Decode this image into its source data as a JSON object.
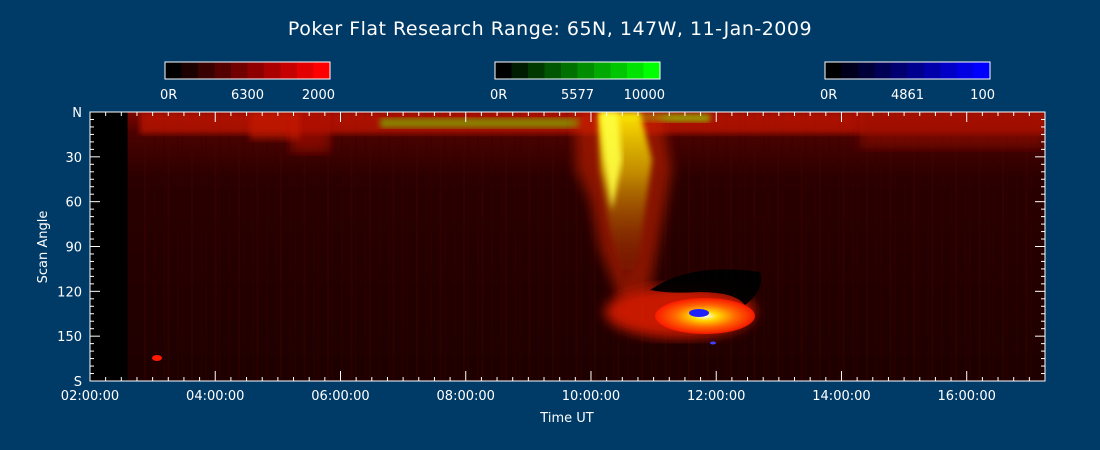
{
  "title": "Poker Flat Research Range: 65N, 147W, 11-Jan-2009",
  "colors": {
    "background": "#003a66",
    "red": "#ff0000",
    "green": "#00ff00",
    "blue": "#0000ff"
  },
  "chart_data": {
    "type": "heatmap",
    "title": "Poker Flat Research Range: 65N, 147W, 11-Jan-2009",
    "xlabel": "Time UT",
    "ylabel": "Scan Angle",
    "x_ticks": [
      "02:00:00",
      "04:00:00",
      "06:00:00",
      "08:00:00",
      "10:00:00",
      "12:00:00",
      "14:00:00",
      "16:00:00"
    ],
    "x_tick_hours": [
      2,
      4,
      6,
      8,
      10,
      12,
      14,
      16
    ],
    "xlim_hours": [
      2.0,
      17.25
    ],
    "y_ticks": [
      "N",
      "30",
      "60",
      "90",
      "120",
      "150",
      "S"
    ],
    "y_tick_values": [
      0,
      30,
      60,
      90,
      120,
      150,
      180
    ],
    "ylim": [
      0,
      180
    ],
    "no_data_before_hour": 2.6,
    "channels": [
      {
        "key": "red",
        "color": "#ff0000",
        "min_label": "0R",
        "wavelength": "6300",
        "max_label": "2000"
      },
      {
        "key": "green",
        "color": "#00ff00",
        "min_label": "0R",
        "wavelength": "5577",
        "max_label": "10000"
      },
      {
        "key": "blue",
        "color": "#0000ff",
        "min_label": "0R",
        "wavelength": "4861",
        "max_label": "100"
      }
    ]
  }
}
